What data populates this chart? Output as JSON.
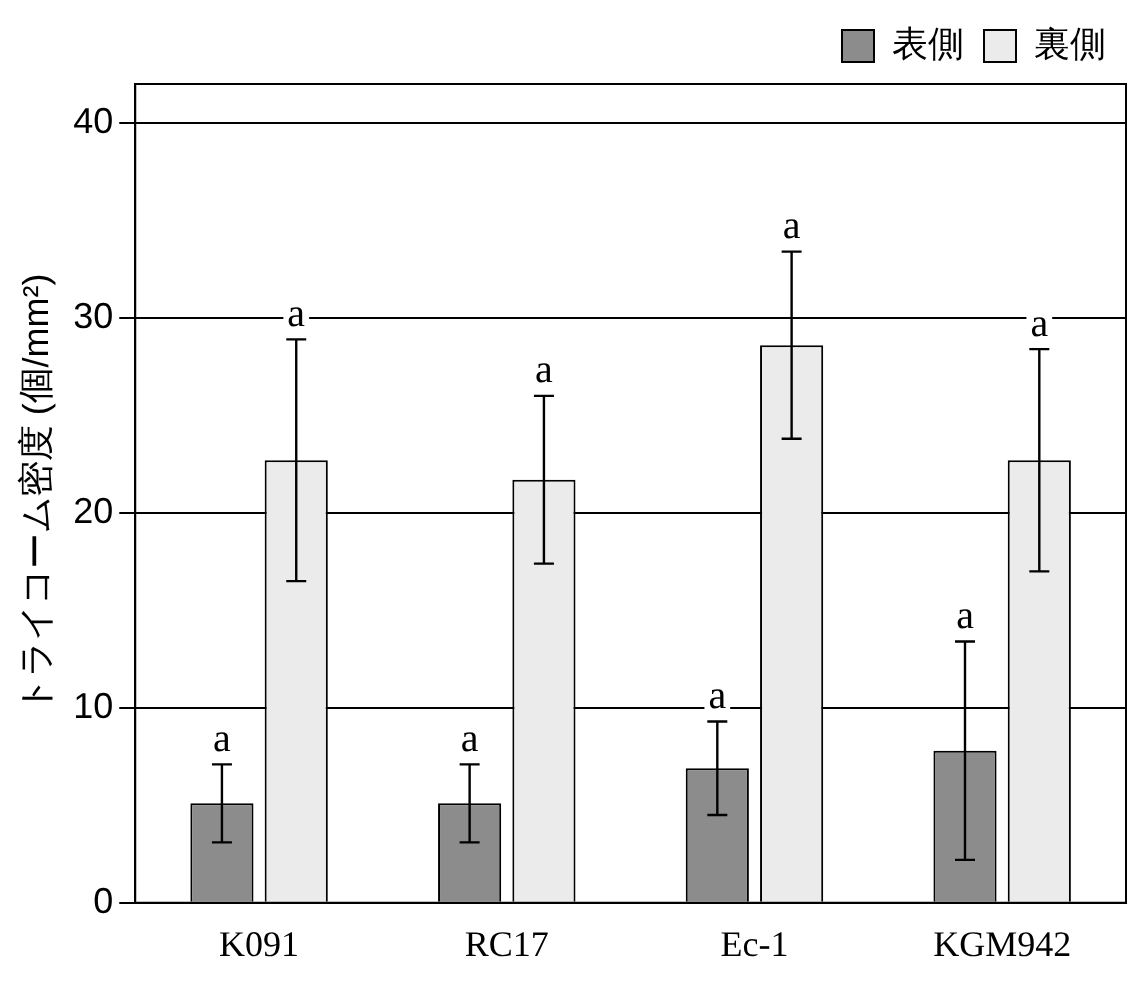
{
  "chart_data": {
    "type": "bar",
    "ylabel": "トライコーム密度 (個/mm²)",
    "categories": [
      "K091",
      "RC17",
      "Ec-1",
      "KGM942"
    ],
    "series": [
      {
        "name": "表側",
        "color": "#8c8c8c",
        "values": [
          5.1,
          5.1,
          6.9,
          7.8
        ],
        "errors": [
          2.0,
          2.0,
          2.4,
          5.6
        ],
        "value_labels": [
          "a",
          "a",
          "a",
          "a"
        ]
      },
      {
        "name": "裏側",
        "color": "#ebebeb",
        "values": [
          22.7,
          21.7,
          28.6,
          22.7
        ],
        "errors": [
          6.2,
          4.3,
          4.8,
          5.7
        ],
        "value_labels": [
          "a",
          "a",
          "a",
          "a"
        ]
      }
    ],
    "ylim": [
      0,
      42
    ],
    "yticks": [
      0,
      10,
      20,
      30,
      40
    ],
    "grid": "y",
    "legend": "top right"
  }
}
